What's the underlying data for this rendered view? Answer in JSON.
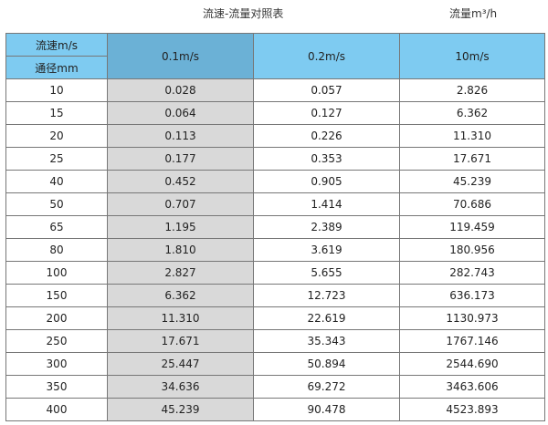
{
  "title": "流速-流量对照表",
  "unit": "流量m³/h",
  "header": {
    "velocity_label": "流速m/s",
    "diameter_label": "通径mm",
    "cols": [
      "0.1m/s",
      "0.2m/s",
      "10m/s"
    ]
  },
  "rows": [
    [
      "10",
      "0.028",
      "0.057",
      "2.826"
    ],
    [
      "15",
      "0.064",
      "0.127",
      "6.362"
    ],
    [
      "20",
      "0.113",
      "0.226",
      "11.310"
    ],
    [
      "25",
      "0.177",
      "0.353",
      "17.671"
    ],
    [
      "40",
      "0.452",
      "0.905",
      "45.239"
    ],
    [
      "50",
      "0.707",
      "1.414",
      "70.686"
    ],
    [
      "65",
      "1.195",
      "2.389",
      "119.459"
    ],
    [
      "80",
      "1.810",
      "3.619",
      "180.956"
    ],
    [
      "100",
      "2.827",
      "5.655",
      "282.743"
    ],
    [
      "150",
      "6.362",
      "12.723",
      "636.173"
    ],
    [
      "200",
      "11.310",
      "22.619",
      "1130.973"
    ],
    [
      "250",
      "17.671",
      "35.343",
      "1767.146"
    ],
    [
      "300",
      "25.447",
      "50.894",
      "2544.690"
    ],
    [
      "350",
      "34.636",
      "69.272",
      "3463.606"
    ],
    [
      "400",
      "45.239",
      "90.478",
      "4523.893"
    ]
  ],
  "colors": {
    "header": "#7ecbf1",
    "selected_header": "#6bb1d6",
    "selected_column": "#d9d9d9"
  }
}
